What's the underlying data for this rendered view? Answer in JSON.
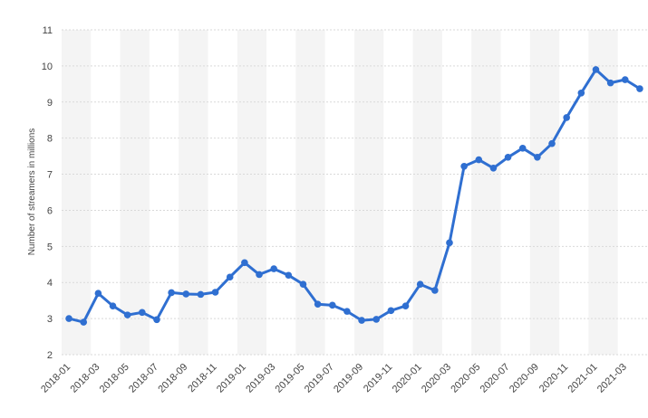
{
  "chart_data": {
    "type": "line",
    "title": "",
    "xlabel": "",
    "ylabel": "Number of streamers in millions",
    "ylim": [
      2,
      11
    ],
    "y_ticks": [
      2,
      3,
      4,
      5,
      6,
      7,
      8,
      9,
      10,
      11
    ],
    "grid": true,
    "legend": "none",
    "line_color": "#2f6fd1",
    "x_tick_labels": [
      "2018-01",
      "2018-03",
      "2018-05",
      "2018-07",
      "2018-09",
      "2018-11",
      "2019-01",
      "2019-03",
      "2019-05",
      "2019-07",
      "2019-09",
      "2019-11",
      "2020-01",
      "2020-03",
      "2020-05",
      "2020-07",
      "2020-09",
      "2020-11",
      "2021-01",
      "2021-03"
    ],
    "x": [
      "2018-01",
      "2018-02",
      "2018-03",
      "2018-04",
      "2018-05",
      "2018-06",
      "2018-07",
      "2018-08",
      "2018-09",
      "2018-10",
      "2018-11",
      "2018-12",
      "2019-01",
      "2019-02",
      "2019-03",
      "2019-04",
      "2019-05",
      "2019-06",
      "2019-07",
      "2019-08",
      "2019-09",
      "2019-10",
      "2019-11",
      "2019-12",
      "2020-01",
      "2020-02",
      "2020-03",
      "2020-04",
      "2020-05",
      "2020-06",
      "2020-07",
      "2020-08",
      "2020-09",
      "2020-10",
      "2020-11",
      "2020-12",
      "2021-01",
      "2021-02",
      "2021-03",
      "2021-04"
    ],
    "series": [
      {
        "values": [
          3.0,
          2.9,
          3.7,
          3.35,
          3.1,
          3.17,
          2.97,
          3.72,
          3.68,
          3.67,
          3.73,
          4.15,
          4.55,
          4.22,
          4.38,
          4.2,
          3.95,
          3.4,
          3.37,
          3.2,
          2.95,
          2.98,
          3.22,
          3.35,
          3.95,
          3.78,
          5.1,
          7.22,
          7.4,
          7.17,
          7.47,
          7.72,
          7.47,
          7.85,
          8.57,
          9.25,
          9.9,
          9.53,
          9.62,
          9.37
        ]
      }
    ]
  }
}
